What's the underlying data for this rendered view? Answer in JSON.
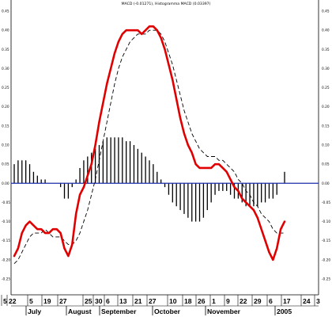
{
  "chart_data": {
    "type": "line",
    "title": "MACD (-0.01271), Histogramma MACD (0.03397)",
    "ylim": [
      -0.25,
      0.45
    ],
    "y_ticks": [
      "0.45",
      "0.40",
      "0.35",
      "0.30",
      "0.25",
      "0.20",
      "0.15",
      "0.10",
      "0.05",
      "0.00",
      "-0.05",
      "-0.10",
      "-0.15",
      "-0.20",
      "-0.25"
    ],
    "x_day_labels": [
      "5",
      "22",
      "5",
      "19",
      "27",
      "25",
      "30",
      "6",
      "13",
      "21",
      "27",
      "10",
      "18",
      "26",
      "1",
      "9",
      "22",
      "29",
      "6",
      "17",
      "24",
      "3"
    ],
    "x_month_labels": [
      "July",
      "August",
      "September",
      "October",
      "November",
      "2005"
    ],
    "zero_line": 0.0,
    "series": [
      {
        "name": "MACD",
        "style": "solid",
        "color": "#e00000",
        "values": [
          -0.19,
          -0.17,
          -0.13,
          -0.11,
          -0.1,
          -0.11,
          -0.12,
          -0.12,
          -0.13,
          -0.13,
          -0.12,
          -0.12,
          -0.13,
          -0.17,
          -0.19,
          -0.16,
          -0.08,
          -0.03,
          -0.01,
          0.02,
          0.05,
          0.1,
          0.16,
          0.21,
          0.26,
          0.3,
          0.34,
          0.37,
          0.39,
          0.4,
          0.4,
          0.4,
          0.4,
          0.39,
          0.4,
          0.41,
          0.41,
          0.4,
          0.38,
          0.35,
          0.31,
          0.27,
          0.22,
          0.17,
          0.13,
          0.1,
          0.08,
          0.05,
          0.04,
          0.04,
          0.04,
          0.04,
          0.05,
          0.05,
          0.04,
          0.03,
          0.01,
          -0.01,
          -0.02,
          -0.04,
          -0.05,
          -0.06,
          -0.07,
          -0.09,
          -0.12,
          -0.15,
          -0.18,
          -0.2,
          -0.17,
          -0.12,
          -0.1
        ]
      },
      {
        "name": "Signal",
        "style": "dashed",
        "color": "#000000",
        "values": [
          -0.21,
          -0.2,
          -0.18,
          -0.16,
          -0.14,
          -0.13,
          -0.13,
          -0.13,
          -0.12,
          -0.13,
          -0.14,
          -0.14,
          -0.14,
          -0.15,
          -0.16,
          -0.16,
          -0.15,
          -0.13,
          -0.1,
          -0.07,
          -0.03,
          0.01,
          0.06,
          0.11,
          0.16,
          0.21,
          0.26,
          0.3,
          0.33,
          0.35,
          0.37,
          0.38,
          0.39,
          0.39,
          0.39,
          0.4,
          0.4,
          0.4,
          0.39,
          0.37,
          0.34,
          0.31,
          0.27,
          0.23,
          0.19,
          0.16,
          0.13,
          0.11,
          0.09,
          0.08,
          0.07,
          0.07,
          0.07,
          0.06,
          0.06,
          0.05,
          0.04,
          0.03,
          0.01,
          0.0,
          -0.02,
          -0.03,
          -0.05,
          -0.06,
          -0.08,
          -0.09,
          -0.1,
          -0.12,
          -0.13,
          -0.13,
          -0.13
        ]
      }
    ],
    "histogram": {
      "name": "Histogramma MACD",
      "color": "#000000",
      "values": [
        0.05,
        0.06,
        0.06,
        0.06,
        0.05,
        0.03,
        0.02,
        0.01,
        0.01,
        0.0,
        0.0,
        0.0,
        -0.01,
        -0.04,
        -0.04,
        -0.01,
        0.01,
        0.04,
        0.06,
        0.07,
        0.08,
        0.09,
        0.1,
        0.11,
        0.12,
        0.12,
        0.12,
        0.12,
        0.12,
        0.11,
        0.11,
        0.1,
        0.09,
        0.08,
        0.07,
        0.06,
        0.05,
        0.03,
        0.01,
        -0.01,
        -0.03,
        -0.05,
        -0.06,
        -0.07,
        -0.08,
        -0.09,
        -0.1,
        -0.1,
        -0.1,
        -0.09,
        -0.07,
        -0.05,
        -0.03,
        -0.02,
        -0.02,
        -0.02,
        -0.03,
        -0.04,
        -0.04,
        -0.05,
        -0.06,
        -0.06,
        -0.06,
        -0.06,
        -0.05,
        -0.05,
        -0.04,
        -0.04,
        -0.03,
        0.0,
        0.03
      ]
    }
  }
}
